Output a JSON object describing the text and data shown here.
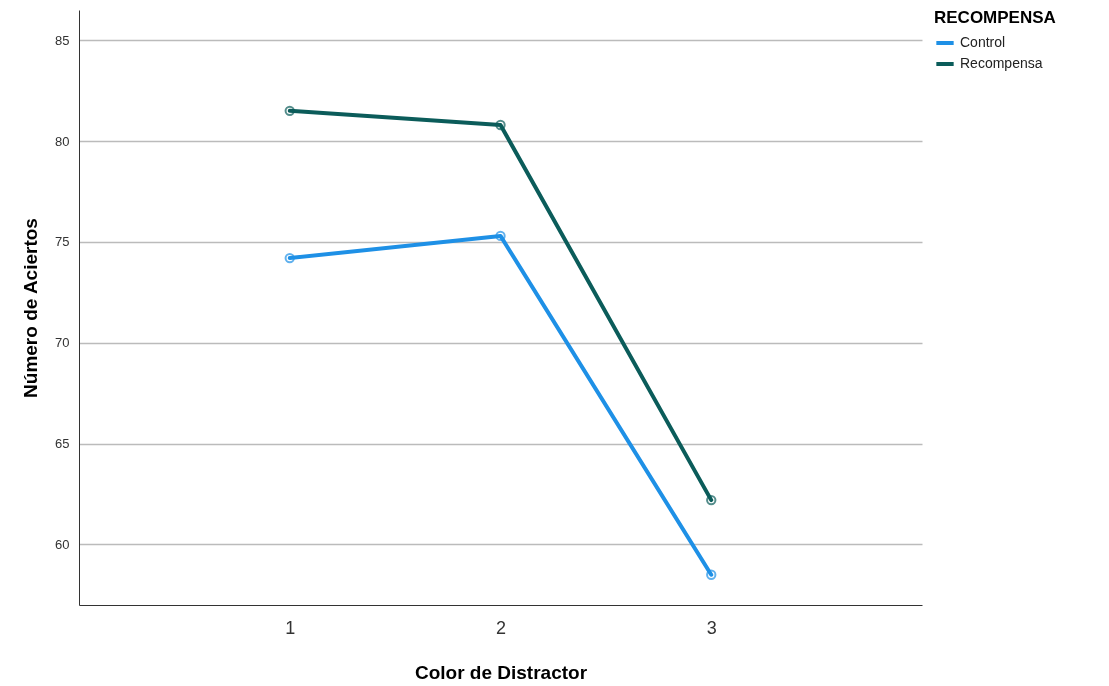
{
  "chart_data": {
    "type": "line",
    "xlabel": "Color de Distractor",
    "ylabel": "Número de Aciertos",
    "legend_title": "RECOMPENSA",
    "categories": [
      "1",
      "2",
      "3"
    ],
    "series": [
      {
        "name": "Control",
        "color": "#1e90e6",
        "values": [
          74.2,
          75.3,
          58.5
        ]
      },
      {
        "name": "Recompensa",
        "color": "#0b5c5a",
        "values": [
          81.5,
          80.8,
          62.2
        ]
      }
    ],
    "ylim": [
      57,
      86.5
    ],
    "yticks": [
      60,
      65,
      70,
      75,
      80,
      85
    ],
    "grid": "y",
    "legend": "top right",
    "marker": "circle",
    "line_style": "solid"
  }
}
